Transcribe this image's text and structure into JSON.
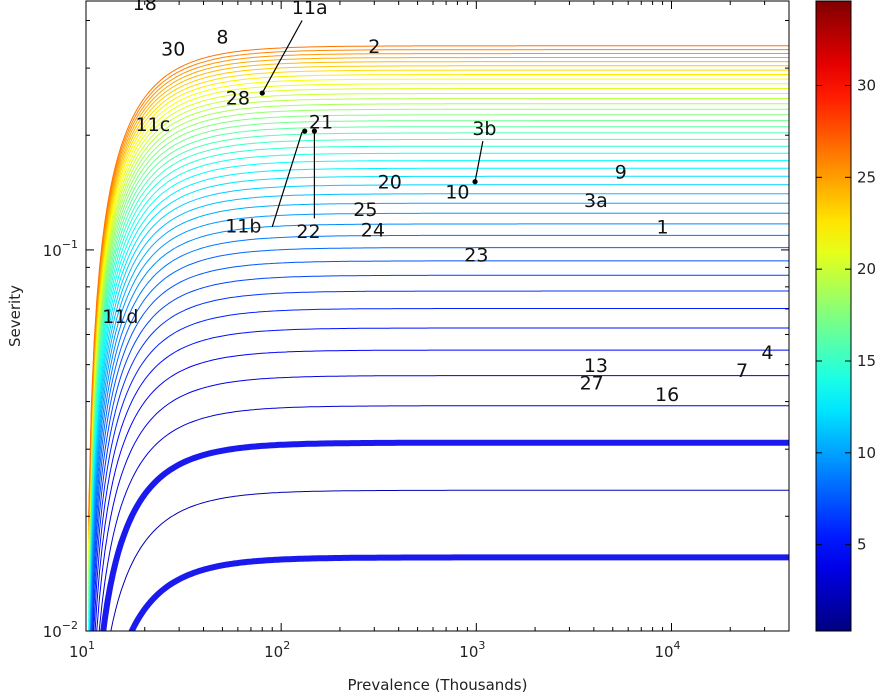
{
  "chart_data": {
    "type": "line",
    "xlabel": "Prevalence (Thousands)",
    "ylabel": "Severity",
    "xscale": "log",
    "yscale": "log",
    "xlim": [
      10,
      40000
    ],
    "ylim": [
      0.01,
      0.45
    ],
    "x_ticks": [
      {
        "value": 10,
        "base": "10",
        "exp": "1"
      },
      {
        "value": 100,
        "base": "10",
        "exp": "2"
      },
      {
        "value": 1000,
        "base": "10",
        "exp": "3"
      },
      {
        "value": 10000,
        "base": "10",
        "exp": "4"
      }
    ],
    "y_ticks": [
      {
        "value": 0.01,
        "base": "10",
        "exp": "−2"
      },
      {
        "value": 0.1,
        "base": "10",
        "exp": "−1"
      }
    ],
    "contours": {
      "description": "Iso-burden curves: severity = level / prevalence asymptote, equally spaced burden levels",
      "level_count": 44,
      "level_step": 0.78,
      "x_offset": 10,
      "curve_exponent": 1.9,
      "highlight_levels": [
        2,
        4
      ],
      "colormap": "jet"
    },
    "colorbar": {
      "range": [
        0.3,
        34.6
      ],
      "ticks": [
        "5",
        "10",
        "15",
        "20",
        "25",
        "30"
      ],
      "tick_values": [
        5,
        10,
        15,
        20,
        25,
        30
      ]
    },
    "points": [
      {
        "label": "18",
        "x": 20,
        "y": 0.44
      },
      {
        "label": "11a",
        "x": 140,
        "y": 0.43
      },
      {
        "label": "8",
        "x": 50,
        "y": 0.36
      },
      {
        "label": "30",
        "x": 28,
        "y": 0.335
      },
      {
        "label": "2",
        "x": 300,
        "y": 0.34
      },
      {
        "label": "28",
        "x": 60,
        "y": 0.249
      },
      {
        "label": "11c",
        "x": 22,
        "y": 0.212
      },
      {
        "label": "21",
        "x": 160,
        "y": 0.215
      },
      {
        "label": "3b",
        "x": 1100,
        "y": 0.207
      },
      {
        "label": "20",
        "x": 360,
        "y": 0.15
      },
      {
        "label": "10",
        "x": 800,
        "y": 0.141
      },
      {
        "label": "9",
        "x": 5500,
        "y": 0.159
      },
      {
        "label": "3a",
        "x": 4100,
        "y": 0.134
      },
      {
        "label": "25",
        "x": 270,
        "y": 0.127
      },
      {
        "label": "11b",
        "x": 64,
        "y": 0.115
      },
      {
        "label": "22",
        "x": 138,
        "y": 0.111
      },
      {
        "label": "24",
        "x": 295,
        "y": 0.112
      },
      {
        "label": "1",
        "x": 9000,
        "y": 0.114
      },
      {
        "label": "23",
        "x": 1000,
        "y": 0.0965
      },
      {
        "label": "11d",
        "x": 15,
        "y": 0.0665
      },
      {
        "label": "13",
        "x": 4100,
        "y": 0.0495
      },
      {
        "label": "27",
        "x": 3900,
        "y": 0.0445
      },
      {
        "label": "16",
        "x": 9500,
        "y": 0.0415
      },
      {
        "label": "7",
        "x": 23000,
        "y": 0.048
      },
      {
        "label": "4",
        "x": 31000,
        "y": 0.0535
      }
    ],
    "leaders": [
      {
        "label": "11a",
        "from": [
          128,
          0.4
        ],
        "to": [
          80,
          0.258
        ]
      },
      {
        "label": "3b",
        "from": [
          1080,
          0.193
        ],
        "to": [
          985,
          0.151
        ]
      },
      {
        "label": "11b",
        "from": [
          90,
          0.115
        ],
        "to": [
          128,
          0.204
        ]
      },
      {
        "label": "22",
        "from": [
          148,
          0.121
        ],
        "to": [
          148,
          0.204
        ]
      }
    ],
    "markers": [
      {
        "x": 80,
        "y": 0.258
      },
      {
        "x": 985,
        "y": 0.151
      },
      {
        "x": 132,
        "y": 0.205
      },
      {
        "x": 148,
        "y": 0.205
      }
    ]
  }
}
